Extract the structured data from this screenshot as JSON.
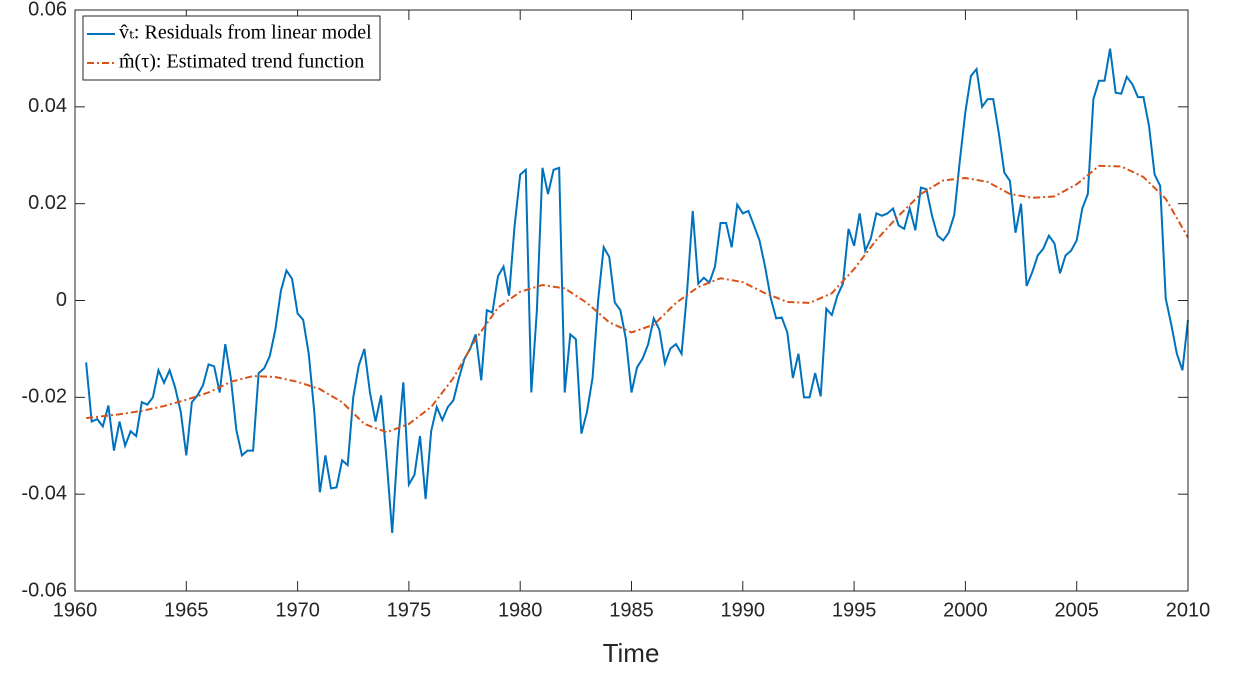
{
  "chart_data": {
    "type": "line",
    "xlabel": "Time",
    "xlim": [
      1960,
      2010
    ],
    "xticks": [
      1960,
      1965,
      1970,
      1975,
      1980,
      1985,
      1990,
      1995,
      2000,
      2005,
      2010
    ],
    "ylim": [
      -0.06,
      0.06
    ],
    "yticks": [
      {
        "value": -0.06,
        "label": "-0.06"
      },
      {
        "value": -0.04,
        "label": "-0.04"
      },
      {
        "value": -0.02,
        "label": "-0.02"
      },
      0,
      {
        "value": 0.02,
        "label": "0.02"
      },
      {
        "value": 0.04,
        "label": "0.04"
      },
      {
        "value": 0.06,
        "label": "0.06"
      }
    ],
    "legend": "upper left",
    "series": [
      {
        "name": "v̂ₜ: Residuals from linear model",
        "color": "#0072bd",
        "style": "solid",
        "x": [
          1960.5,
          1960.75,
          1961,
          1961.25,
          1961.5,
          1961.75,
          1962,
          1962.25,
          1962.5,
          1962.75,
          1963,
          1963.25,
          1963.5,
          1963.75,
          1964,
          1964.25,
          1964.5,
          1964.75,
          1965,
          1965.25,
          1965.5,
          1965.75,
          1966,
          1966.25,
          1966.5,
          1966.75,
          1967,
          1967.25,
          1967.5,
          1967.75,
          1968,
          1968.25,
          1968.5,
          1968.75,
          1969,
          1969.25,
          1969.5,
          1969.75,
          1970,
          1970.25,
          1970.5,
          1970.75,
          1971,
          1971.25,
          1971.5,
          1971.75,
          1972,
          1972.25,
          1972.5,
          1972.75,
          1973,
          1973.25,
          1973.5,
          1973.75,
          1974,
          1974.25,
          1974.5,
          1974.75,
          1975,
          1975.25,
          1975.5,
          1975.75,
          1976,
          1976.25,
          1976.5,
          1976.75,
          1977,
          1977.25,
          1977.5,
          1977.75,
          1978,
          1978.25,
          1978.5,
          1978.75,
          1979,
          1979.25,
          1979.5,
          1979.75,
          1980,
          1980.25,
          1980.5,
          1980.75,
          1981,
          1981.25,
          1981.5,
          1981.75,
          1982,
          1982.25,
          1982.5,
          1982.75,
          1983,
          1983.25,
          1983.5,
          1983.75,
          1984,
          1984.25,
          1984.5,
          1984.75,
          1985,
          1985.25,
          1985.5,
          1985.75,
          1986,
          1986.25,
          1986.5,
          1986.75,
          1987,
          1987.25,
          1987.5,
          1987.75,
          1988,
          1988.25,
          1988.5,
          1988.75,
          1989,
          1989.25,
          1989.5,
          1989.75,
          1990,
          1990.25,
          1990.5,
          1990.75,
          1991,
          1991.25,
          1991.5,
          1991.75,
          1992,
          1992.25,
          1992.5,
          1992.75,
          1993,
          1993.25,
          1993.5,
          1993.75,
          1994,
          1994.25,
          1994.5,
          1994.75,
          1995,
          1995.25,
          1995.5,
          1995.75,
          1996,
          1996.25,
          1996.5,
          1996.75,
          1997,
          1997.25,
          1997.5,
          1997.75,
          1998,
          1998.25,
          1998.5,
          1998.75,
          1999,
          1999.25,
          1999.5,
          1999.75,
          2000,
          2000.25,
          2000.5,
          2000.75,
          2001,
          2001.25,
          2001.5,
          2001.75,
          2002,
          2002.25,
          2002.5,
          2002.75,
          2003,
          2003.25,
          2003.5,
          2003.75,
          2004,
          2004.25,
          2004.5,
          2004.75,
          2005,
          2005.25,
          2005.5,
          2005.75,
          2006,
          2006.25,
          2006.5,
          2006.75,
          2007,
          2007.25,
          2007.5,
          2007.75,
          2008,
          2008.25,
          2008.5,
          2008.75,
          2009,
          2009.25,
          2009.5,
          2009.75,
          2010
        ],
        "values": [
          -0.0128,
          -0.025,
          -0.0245,
          -0.026,
          -0.0217,
          -0.031,
          -0.025,
          -0.03,
          -0.027,
          -0.028,
          -0.021,
          -0.0215,
          -0.02,
          -0.0144,
          -0.017,
          -0.0144,
          -0.018,
          -0.023,
          -0.032,
          -0.021,
          -0.0196,
          -0.0175,
          -0.0132,
          -0.0136,
          -0.019,
          -0.009,
          -0.016,
          -0.0268,
          -0.032,
          -0.031,
          -0.031,
          -0.015,
          -0.014,
          -0.0115,
          -0.006,
          0.002,
          0.0062,
          0.0045,
          -0.0027,
          -0.004,
          -0.011,
          -0.023,
          -0.0396,
          -0.032,
          -0.0388,
          -0.0386,
          -0.033,
          -0.034,
          -0.02,
          -0.0134,
          -0.01,
          -0.019,
          -0.025,
          -0.0196,
          -0.033,
          -0.048,
          -0.03,
          -0.0169,
          -0.038,
          -0.036,
          -0.028,
          -0.041,
          -0.027,
          -0.022,
          -0.0247,
          -0.022,
          -0.0206,
          -0.016,
          -0.012,
          -0.01,
          -0.007,
          -0.0165,
          -0.002,
          -0.0025,
          0.005,
          0.007,
          0.001,
          0.0155,
          0.026,
          0.027,
          -0.019,
          -0.002,
          0.0274,
          0.022,
          0.027,
          0.0274,
          -0.019,
          -0.007,
          -0.008,
          -0.0275,
          -0.023,
          -0.016,
          0,
          0.011,
          0.009,
          -0.0004,
          -0.002,
          -0.008,
          -0.019,
          -0.0138,
          -0.012,
          -0.009,
          -0.0037,
          -0.006,
          -0.013,
          -0.0099,
          -0.009,
          -0.011,
          0.002,
          0.0185,
          0.0035,
          0.0047,
          0.0037,
          0.007,
          0.016,
          0.016,
          0.011,
          0.0198,
          0.018,
          0.0185,
          0.0155,
          0.0124,
          0.007,
          0.0006,
          -0.0037,
          -0.0035,
          -0.0066,
          -0.016,
          -0.011,
          -0.02,
          -0.02,
          -0.015,
          -0.0198,
          -0.0017,
          -0.003,
          0.001,
          0.0035,
          0.0148,
          0.0113,
          0.018,
          0.0103,
          0.0128,
          0.018,
          0.0175,
          0.018,
          0.019,
          0.0155,
          0.0148,
          0.019,
          0.0145,
          0.0233,
          0.023,
          0.0175,
          0.0134,
          0.0124,
          0.014,
          0.0177,
          0.0289,
          0.039,
          0.0464,
          0.0478,
          0.04,
          0.0416,
          0.0416,
          0.0346,
          0.0264,
          0.0247,
          0.014,
          0.02,
          0.003,
          0.0058,
          0.0093,
          0.0107,
          0.0134,
          0.0118,
          0.0056,
          0.0093,
          0.0103,
          0.0124,
          0.019,
          0.022,
          0.0416,
          0.0454,
          0.0454,
          0.052,
          0.0429,
          0.0427,
          0.0462,
          0.0447,
          0.042,
          0.042,
          0.036,
          0.026,
          0.0237,
          0.0004,
          -0.005,
          -0.011,
          -0.0144,
          -0.004
        ]
      },
      {
        "name": "m̂(τ): Estimated trend function",
        "color": "#d95319",
        "style": "dashdot",
        "x": [
          1960.5,
          1962,
          1963,
          1964,
          1965,
          1966,
          1967,
          1968,
          1969,
          1970,
          1971,
          1972,
          1973,
          1974,
          1975,
          1976,
          1977,
          1978,
          1979,
          1980,
          1981,
          1982,
          1983,
          1984,
          1985,
          1986,
          1987,
          1988,
          1989,
          1990,
          1991,
          1992,
          1993,
          1994,
          1995,
          1996,
          1997,
          1998,
          1999,
          2000,
          2001,
          2002,
          2003,
          2004,
          2005,
          2006,
          2007,
          2008,
          2009,
          2010
        ],
        "values": [
          -0.0243,
          -0.0235,
          -0.0228,
          -0.0218,
          -0.0205,
          -0.019,
          -0.0168,
          -0.0156,
          -0.0158,
          -0.0168,
          -0.0183,
          -0.021,
          -0.0255,
          -0.0272,
          -0.0255,
          -0.022,
          -0.016,
          -0.008,
          -0.0015,
          0.0018,
          0.0032,
          0.0025,
          -0.0005,
          -0.0045,
          -0.0066,
          -0.005,
          -0.0005,
          0.0028,
          0.0046,
          0.0038,
          0.0015,
          -0.0003,
          -0.0005,
          0.0015,
          0.0065,
          0.0125,
          0.0175,
          0.022,
          0.0248,
          0.0253,
          0.0245,
          0.022,
          0.0212,
          0.0215,
          0.024,
          0.0278,
          0.0277,
          0.0255,
          0.021,
          0.013
        ]
      }
    ]
  }
}
